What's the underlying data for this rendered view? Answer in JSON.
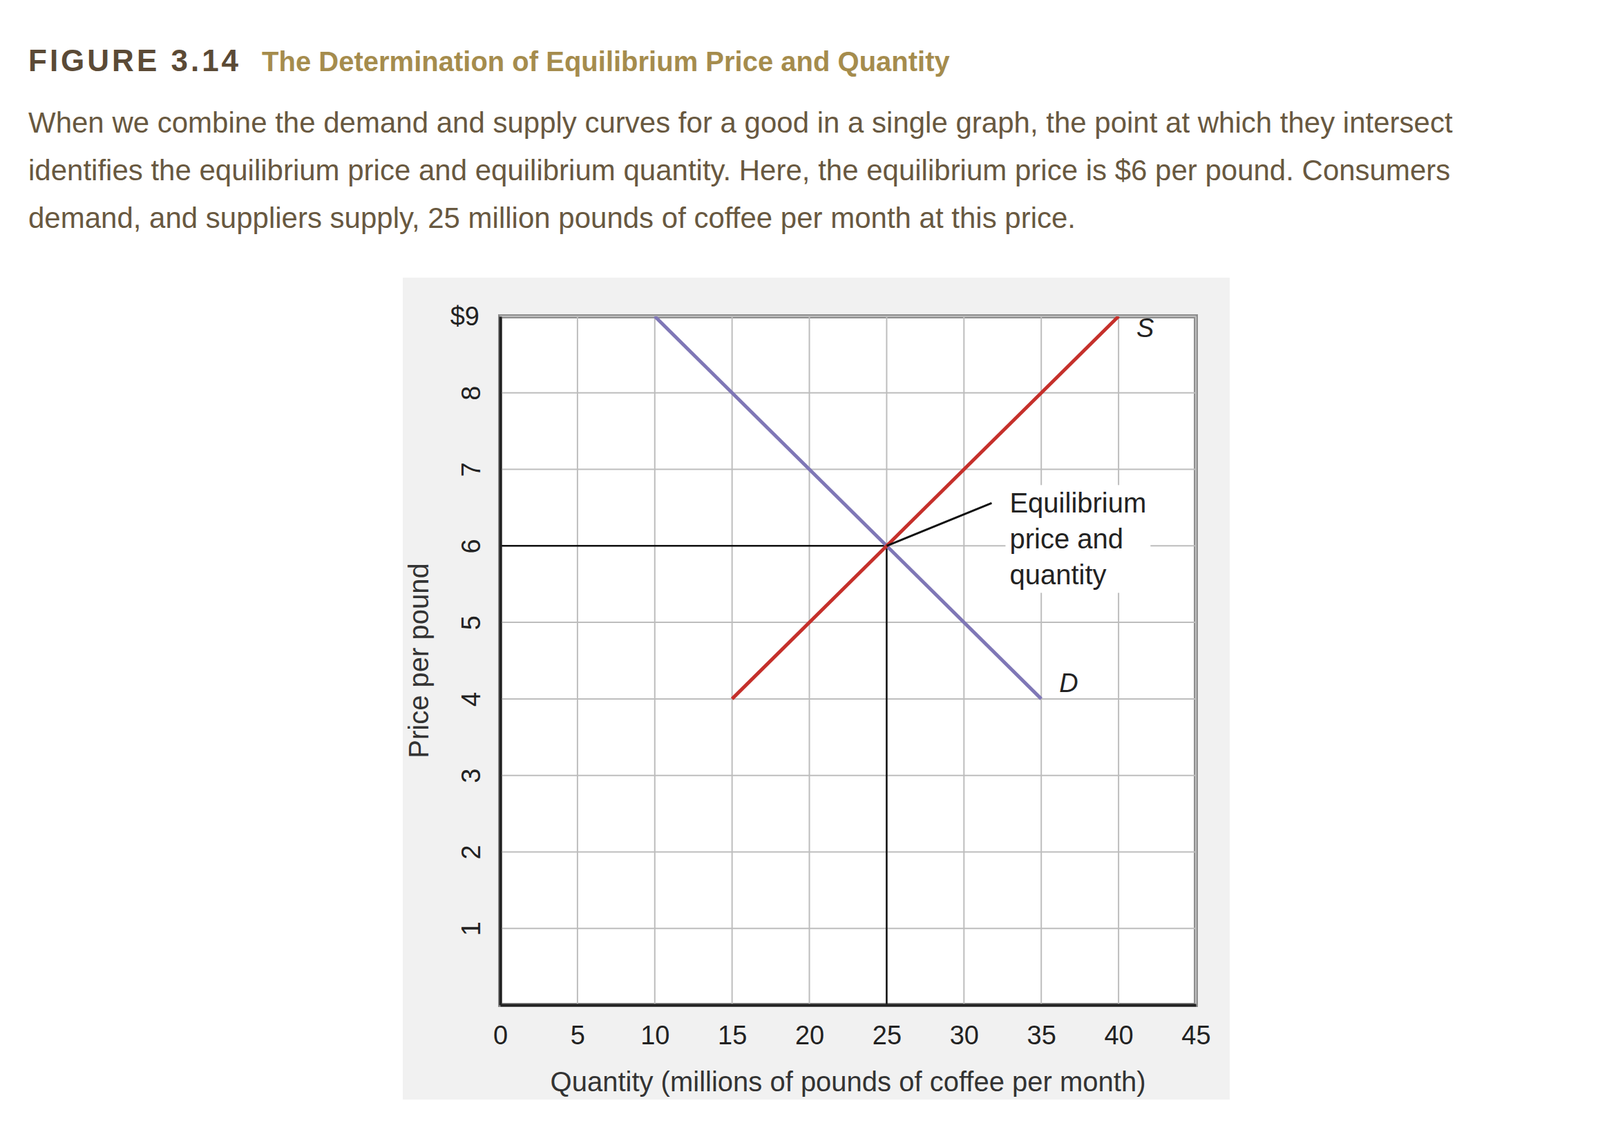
{
  "chart_data": {
    "type": "line",
    "figure_label": "FIGURE 3.14",
    "title": "The Determination of Equilibrium Price and Quantity",
    "subtitle": [
      "When we combine the demand and supply curves for a good in a single graph, the point at which they intersect",
      "identifies the equilibrium price and equilibrium quantity. Here, the equilibrium price is $6 per pound. Consumers",
      "demand, and suppliers supply, 25 million pounds of coffee per month at this price."
    ],
    "x_label": "Quantity (millions of pounds of coffee per month)",
    "y_label": "Price per pound",
    "series": [
      {
        "name": "D",
        "color": "#7f77b6",
        "x": [
          10,
          35
        ],
        "values": [
          9,
          4
        ]
      },
      {
        "name": "S",
        "color": "#c5302b",
        "x": [
          15,
          40
        ],
        "values": [
          4,
          9
        ]
      }
    ],
    "annotations": [
      {
        "text": [
          "Equilibrium",
          "price and",
          "quantity"
        ],
        "x": 25,
        "y": 6
      }
    ],
    "xlim": [
      0,
      45
    ],
    "ylim": [
      0,
      9
    ],
    "xticks": [
      0,
      5,
      10,
      15,
      20,
      25,
      30,
      35,
      40,
      45
    ],
    "yticks": [
      1,
      2,
      3,
      4,
      5,
      6,
      7,
      8,
      {
        "value": 9,
        "label": "$9"
      }
    ],
    "grid": true
  }
}
